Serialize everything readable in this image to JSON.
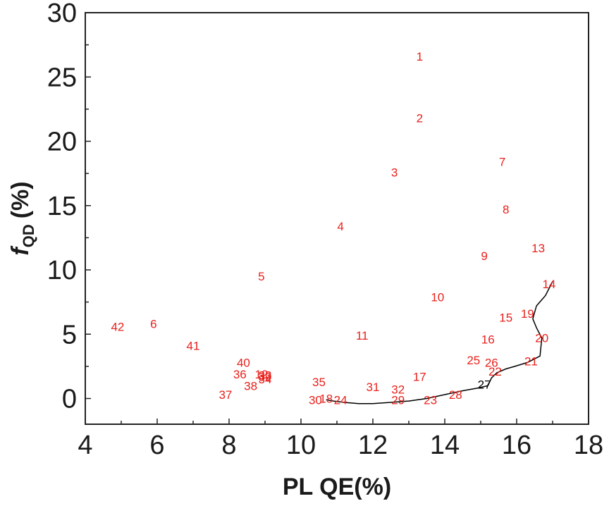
{
  "chart_data": {
    "type": "scatter",
    "xlabel": "PL QE(%)",
    "ylabel": {
      "symbol": "f",
      "subscript": "QD",
      "unit": "(%)"
    },
    "xlim": [
      4,
      18
    ],
    "ylim": [
      -2,
      30
    ],
    "x_ticks": [
      "4",
      "6",
      "8",
      "10",
      "12",
      "14",
      "16",
      "18"
    ],
    "y_ticks": [
      "0",
      "5",
      "10",
      "15",
      "20",
      "25",
      "30"
    ],
    "grid": false,
    "label_color": "#e8211c",
    "curve_color": "#000000",
    "points": [
      {
        "label": "1",
        "x": 13.3,
        "y": 26.6
      },
      {
        "label": "2",
        "x": 13.3,
        "y": 21.8
      },
      {
        "label": "3",
        "x": 12.6,
        "y": 17.6
      },
      {
        "label": "4",
        "x": 11.1,
        "y": 13.4
      },
      {
        "label": "5",
        "x": 8.9,
        "y": 9.5
      },
      {
        "label": "6",
        "x": 5.9,
        "y": 5.8
      },
      {
        "label": "7",
        "x": 15.6,
        "y": 18.4
      },
      {
        "label": "8",
        "x": 15.7,
        "y": 14.7
      },
      {
        "label": "9",
        "x": 15.1,
        "y": 11.1
      },
      {
        "label": "10",
        "x": 13.8,
        "y": 7.9
      },
      {
        "label": "11",
        "x": 11.7,
        "y": 4.9
      },
      {
        "label": "12",
        "x": 8.9,
        "y": 1.9
      },
      {
        "label": "13",
        "x": 16.6,
        "y": 11.7
      },
      {
        "label": "14",
        "x": 16.9,
        "y": 8.9
      },
      {
        "label": "15",
        "x": 15.7,
        "y": 6.3
      },
      {
        "label": "16",
        "x": 15.2,
        "y": 4.6
      },
      {
        "label": "17",
        "x": 13.3,
        "y": 1.7
      },
      {
        "label": "18",
        "x": 10.7,
        "y": 0.0
      },
      {
        "label": "19",
        "x": 16.3,
        "y": 6.6
      },
      {
        "label": "20",
        "x": 16.7,
        "y": 4.7
      },
      {
        "label": "21",
        "x": 16.4,
        "y": 2.9
      },
      {
        "label": "22",
        "x": 15.4,
        "y": 2.1
      },
      {
        "label": "23",
        "x": 13.6,
        "y": -0.1
      },
      {
        "label": "24",
        "x": 11.1,
        "y": -0.1
      },
      {
        "label": "25",
        "x": 14.8,
        "y": 3.0
      },
      {
        "label": "26",
        "x": 15.3,
        "y": 2.8
      },
      {
        "label": "27",
        "x": 15.1,
        "y": 1.1
      },
      {
        "label": "28",
        "x": 14.3,
        "y": 0.3
      },
      {
        "label": "29",
        "x": 12.7,
        "y": -0.1
      },
      {
        "label": "30",
        "x": 10.4,
        "y": -0.1
      },
      {
        "label": "31",
        "x": 12.0,
        "y": 0.9
      },
      {
        "label": "32",
        "x": 12.7,
        "y": 0.7
      },
      {
        "label": "33",
        "x": 9.0,
        "y": 1.8
      },
      {
        "label": "34",
        "x": 9.0,
        "y": 1.5
      },
      {
        "label": "35",
        "x": 10.5,
        "y": 1.3
      },
      {
        "label": "36",
        "x": 8.3,
        "y": 1.9
      },
      {
        "label": "37",
        "x": 7.9,
        "y": 0.3
      },
      {
        "label": "38",
        "x": 8.6,
        "y": 1.0
      },
      {
        "label": "39",
        "x": 9.0,
        "y": 1.7
      },
      {
        "label": "40",
        "x": 8.4,
        "y": 2.8
      },
      {
        "label": "41",
        "x": 7.0,
        "y": 4.1
      },
      {
        "label": "42",
        "x": 4.9,
        "y": 5.6
      }
    ],
    "trend_curve": [
      [
        17.0,
        9.1
      ],
      [
        16.8,
        8.0
      ],
      [
        16.55,
        7.2
      ],
      [
        16.45,
        6.2
      ],
      [
        16.55,
        5.5
      ],
      [
        16.7,
        4.7
      ],
      [
        16.65,
        3.3
      ],
      [
        16.3,
        2.8
      ],
      [
        15.95,
        2.5
      ],
      [
        15.7,
        2.3
      ],
      [
        15.45,
        2.0
      ],
      [
        15.3,
        1.6
      ],
      [
        15.2,
        1.0
      ],
      [
        14.9,
        0.8
      ],
      [
        14.5,
        0.6
      ],
      [
        14.0,
        0.3
      ],
      [
        13.5,
        0.0
      ],
      [
        13.0,
        -0.2
      ],
      [
        12.5,
        -0.3
      ],
      [
        12.0,
        -0.4
      ],
      [
        11.6,
        -0.4
      ],
      [
        11.2,
        -0.3
      ],
      [
        10.9,
        -0.2
      ],
      [
        10.7,
        -0.1
      ]
    ],
    "black_labels": [
      "27"
    ]
  }
}
